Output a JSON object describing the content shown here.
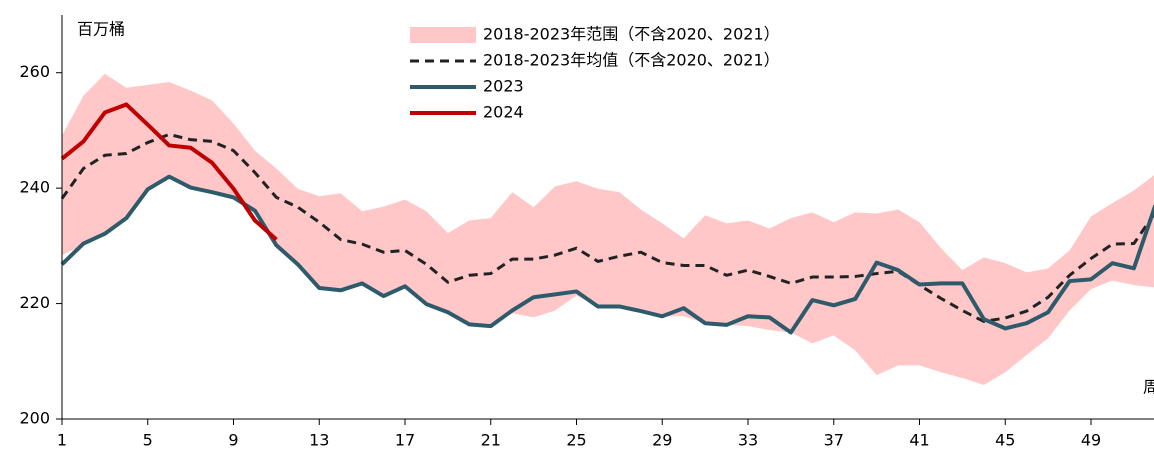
{
  "chart_data": {
    "type": "line",
    "y_label": "百万桶",
    "x_label": "周",
    "x": [
      1,
      2,
      3,
      4,
      5,
      6,
      7,
      8,
      9,
      10,
      11,
      12,
      13,
      14,
      15,
      16,
      17,
      18,
      19,
      20,
      21,
      22,
      23,
      24,
      25,
      26,
      27,
      28,
      29,
      30,
      31,
      32,
      33,
      34,
      35,
      36,
      37,
      38,
      39,
      40,
      41,
      42,
      43,
      44,
      45,
      46,
      47,
      48,
      49,
      50,
      51,
      52
    ],
    "xlim": [
      1,
      52
    ],
    "xticks": [
      1,
      5,
      9,
      13,
      17,
      21,
      25,
      29,
      33,
      37,
      41,
      45,
      49
    ],
    "ylim": [
      200,
      270
    ],
    "yticks": [
      200,
      220,
      240,
      260
    ],
    "series": [
      {
        "name": "2018-2023年范围（不含2020、2021）",
        "kind": "range",
        "color": "#ffc7c7",
        "high": [
          249.1,
          256.0,
          259.8,
          257.4,
          257.9,
          258.4,
          256.9,
          255.2,
          251.2,
          246.5,
          243.4,
          239.9,
          238.6,
          239.1,
          236.0,
          236.8,
          238.0,
          236.0,
          232.2,
          234.4,
          234.8,
          239.3,
          236.7,
          240.3,
          241.2,
          239.9,
          239.3,
          236.3,
          233.9,
          231.3,
          235.3,
          233.9,
          234.4,
          233.0,
          234.8,
          235.8,
          234.1,
          235.8,
          235.6,
          236.3,
          234.1,
          229.6,
          225.8,
          228.0,
          227.0,
          225.4,
          226.1,
          229.2,
          235.1,
          237.4,
          239.6,
          242.4
        ],
        "low": [
          228.4,
          230.1,
          232.1,
          234.8,
          239.8,
          242.0,
          240.1,
          239.3,
          238.4,
          236.1,
          230.1,
          226.8,
          222.7,
          222.3,
          223.2,
          221.3,
          222.7,
          219.9,
          218.5,
          216.4,
          216.1,
          218.3,
          217.6,
          218.8,
          221.4,
          219.5,
          219.5,
          218.7,
          217.8,
          217.8,
          216.6,
          216.3,
          216.1,
          215.4,
          215.0,
          213.1,
          214.5,
          211.9,
          207.6,
          209.3,
          209.3,
          208.1,
          207.1,
          205.9,
          208.1,
          211.1,
          214.0,
          218.8,
          222.5,
          224.0,
          223.2,
          222.8
        ]
      },
      {
        "name": "2018-2023年均值（不含2020、2021）",
        "kind": "dashed",
        "color": "#222222",
        "values": [
          238.2,
          243.4,
          245.7,
          246.0,
          247.9,
          249.3,
          248.4,
          248.1,
          246.5,
          242.7,
          238.4,
          236.7,
          234.1,
          231.1,
          230.3,
          228.9,
          229.2,
          226.8,
          223.7,
          224.9,
          225.2,
          227.7,
          227.7,
          228.4,
          229.6,
          227.3,
          228.2,
          228.9,
          227.1,
          226.6,
          226.6,
          224.9,
          225.8,
          224.7,
          223.5,
          224.6,
          224.6,
          224.7,
          225.2,
          225.6,
          223.2,
          220.9,
          218.8,
          216.9,
          217.5,
          218.7,
          221.1,
          224.9,
          227.8,
          230.3,
          230.4,
          235.8
        ]
      },
      {
        "name": "2023",
        "kind": "solid",
        "color": "#2e5b6b",
        "values": [
          226.8,
          230.4,
          232.1,
          234.8,
          239.8,
          242.0,
          240.1,
          239.3,
          238.4,
          236.1,
          230.1,
          226.8,
          222.7,
          222.3,
          223.5,
          221.3,
          223.0,
          219.9,
          218.5,
          216.4,
          216.1,
          218.8,
          221.1,
          221.6,
          222.1,
          219.5,
          219.5,
          218.7,
          217.8,
          219.2,
          216.6,
          216.3,
          217.8,
          217.6,
          215.0,
          220.6,
          219.7,
          220.8,
          227.1,
          225.8,
          223.3,
          223.5,
          223.5,
          217.3,
          215.7,
          216.6,
          218.5,
          223.9,
          224.2,
          227.0,
          226.1,
          237.0
        ]
      },
      {
        "name": "2024",
        "kind": "solid",
        "color": "#c00000",
        "values": [
          245.1,
          248.1,
          253.1,
          254.5,
          251.0,
          247.4,
          247.0,
          244.4,
          239.9,
          234.4,
          231.1,
          null,
          null,
          null,
          null,
          null,
          null,
          null,
          null,
          null,
          null,
          null,
          null,
          null,
          null,
          null,
          null,
          null,
          null,
          null,
          null,
          null,
          null,
          null,
          null,
          null,
          null,
          null,
          null,
          null,
          null,
          null,
          null,
          null,
          null,
          null,
          null,
          null,
          null,
          null,
          null,
          null
        ]
      }
    ]
  }
}
